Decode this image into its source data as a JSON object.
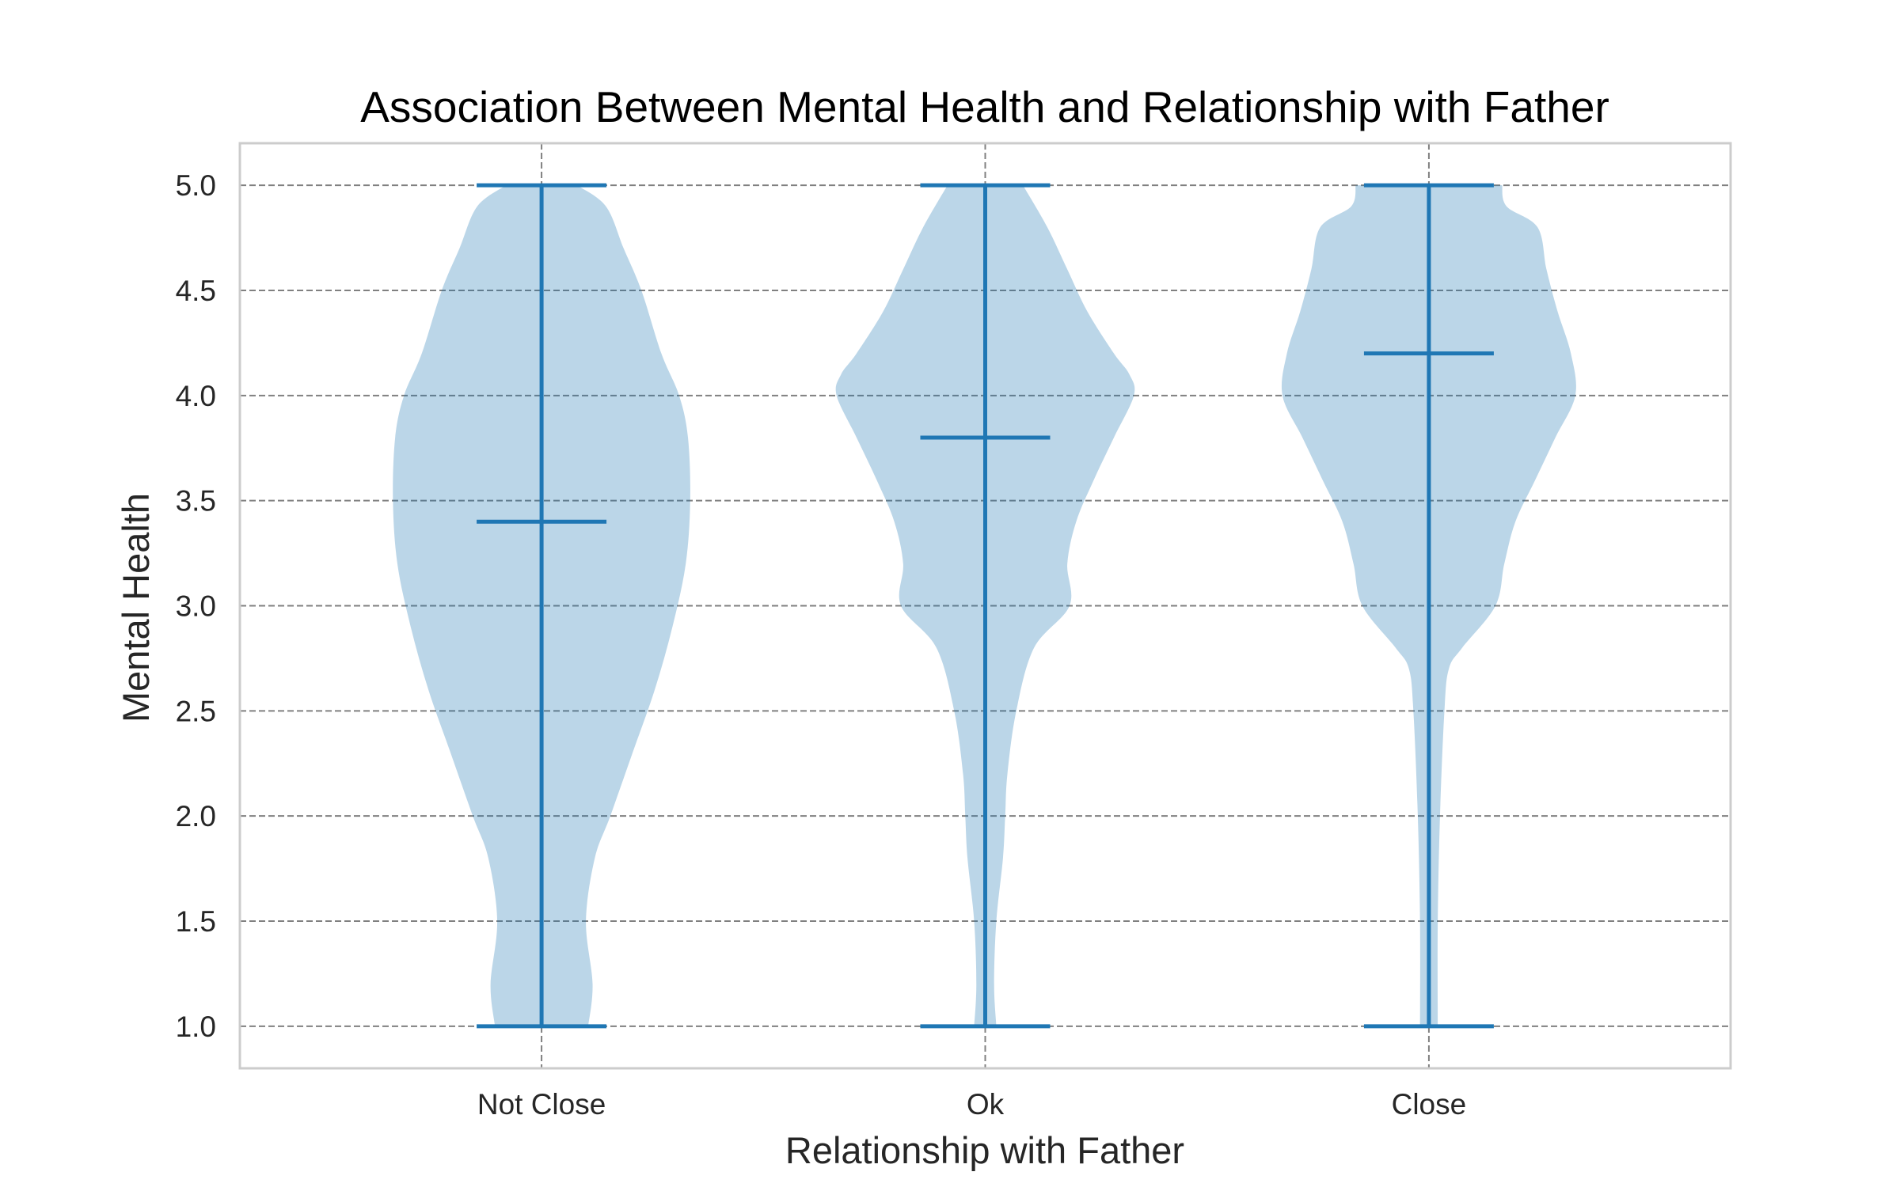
{
  "chart_data": {
    "type": "violin",
    "title": "Association Between Mental Health and Relationship with Father",
    "xlabel": "Relationship with Father",
    "ylabel": "Mental Health",
    "ylim": [
      0.8,
      5.2
    ],
    "yticks": [
      "1.0",
      "1.5",
      "2.0",
      "2.5",
      "3.0",
      "3.5",
      "4.0",
      "4.5",
      "5.0"
    ],
    "ytick_values": [
      1.0,
      1.5,
      2.0,
      2.5,
      3.0,
      3.5,
      4.0,
      4.5,
      5.0
    ],
    "categories": [
      "Not Close",
      "Ok",
      "Close"
    ],
    "grid": true,
    "color": "#1f77b4",
    "violins": [
      {
        "category": "Not Close",
        "min": 1.0,
        "max": 5.0,
        "mean": 3.4,
        "density": [
          [
            1.0,
            0.105
          ],
          [
            1.2,
            0.115
          ],
          [
            1.5,
            0.1
          ],
          [
            1.8,
            0.12
          ],
          [
            2.0,
            0.155
          ],
          [
            2.3,
            0.205
          ],
          [
            2.6,
            0.255
          ],
          [
            2.9,
            0.295
          ],
          [
            3.2,
            0.325
          ],
          [
            3.5,
            0.335
          ],
          [
            3.8,
            0.33
          ],
          [
            4.0,
            0.31
          ],
          [
            4.2,
            0.27
          ],
          [
            4.5,
            0.225
          ],
          [
            4.7,
            0.185
          ],
          [
            4.9,
            0.145
          ],
          [
            5.0,
            0.08
          ]
        ]
      },
      {
        "category": "Ok",
        "min": 1.0,
        "max": 5.0,
        "mean": 3.8,
        "density": [
          [
            1.0,
            0.025
          ],
          [
            1.2,
            0.02
          ],
          [
            1.5,
            0.025
          ],
          [
            1.8,
            0.04
          ],
          [
            2.0,
            0.045
          ],
          [
            2.2,
            0.05
          ],
          [
            2.5,
            0.07
          ],
          [
            2.8,
            0.11
          ],
          [
            3.0,
            0.19
          ],
          [
            3.2,
            0.185
          ],
          [
            3.4,
            0.205
          ],
          [
            3.6,
            0.245
          ],
          [
            3.8,
            0.29
          ],
          [
            4.0,
            0.335
          ],
          [
            4.1,
            0.325
          ],
          [
            4.2,
            0.29
          ],
          [
            4.4,
            0.23
          ],
          [
            4.6,
            0.185
          ],
          [
            4.8,
            0.14
          ],
          [
            5.0,
            0.085
          ]
        ]
      },
      {
        "category": "Close",
        "min": 1.0,
        "max": 5.0,
        "mean": 4.2,
        "density": [
          [
            1.0,
            0.02
          ],
          [
            1.5,
            0.02
          ],
          [
            2.0,
            0.025
          ],
          [
            2.5,
            0.035
          ],
          [
            2.7,
            0.045
          ],
          [
            2.8,
            0.075
          ],
          [
            3.0,
            0.15
          ],
          [
            3.2,
            0.17
          ],
          [
            3.4,
            0.195
          ],
          [
            3.6,
            0.24
          ],
          [
            3.8,
            0.285
          ],
          [
            4.0,
            0.33
          ],
          [
            4.2,
            0.32
          ],
          [
            4.4,
            0.29
          ],
          [
            4.6,
            0.265
          ],
          [
            4.8,
            0.245
          ],
          [
            4.9,
            0.175
          ],
          [
            5.0,
            0.165
          ]
        ]
      }
    ]
  }
}
